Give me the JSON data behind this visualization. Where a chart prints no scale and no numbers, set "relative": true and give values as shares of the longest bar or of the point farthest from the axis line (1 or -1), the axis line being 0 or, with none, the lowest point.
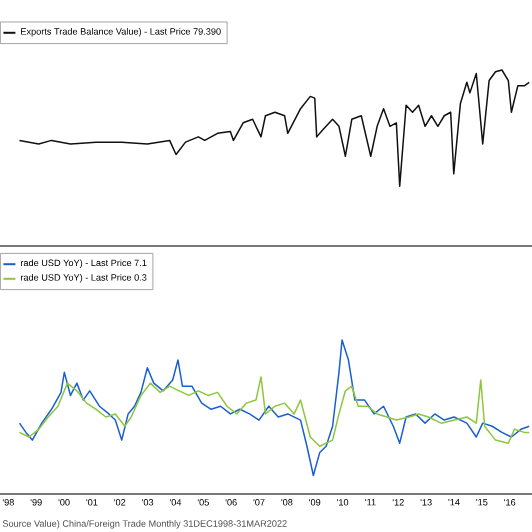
{
  "chart_data": [
    {
      "type": "line",
      "relative": true,
      "xlim": [
        1997.7,
        2016.8
      ],
      "legend": "top left",
      "series": [
        {
          "name": "Exports Trade Balance Value) - Last Price 79.390",
          "color": "#111111",
          "x": [
            1998.4,
            1999.09,
            1999.55,
            2000.23,
            2001.15,
            2002.07,
            2002.99,
            2003.79,
            2004.02,
            2004.36,
            2004.82,
            2005.05,
            2005.51,
            2005.97,
            2006.08,
            2006.43,
            2006.77,
            2007.07,
            2007.23,
            2007.57,
            2007.92,
            2008.03,
            2008.49,
            2008.84,
            2009.0,
            2009.07,
            2009.29,
            2009.64,
            2009.87,
            2010.1,
            2010.33,
            2010.67,
            2011.01,
            2011.24,
            2011.47,
            2011.7,
            2011.93,
            2012.05,
            2012.28,
            2012.51,
            2012.73,
            2012.96,
            2013.19,
            2013.42,
            2013.65,
            2013.88,
            2013.99,
            2014.23,
            2014.46,
            2014.57,
            2014.8,
            2015.03,
            2015.26,
            2015.49,
            2015.72,
            2015.95,
            2016.06,
            2016.29,
            2016.52,
            2016.7
          ],
          "values": [
            0.6,
            0.58,
            0.6,
            0.58,
            0.59,
            0.59,
            0.58,
            0.6,
            0.52,
            0.59,
            0.62,
            0.6,
            0.64,
            0.65,
            0.6,
            0.7,
            0.72,
            0.62,
            0.74,
            0.76,
            0.74,
            0.64,
            0.78,
            0.85,
            0.84,
            0.62,
            0.66,
            0.72,
            0.68,
            0.51,
            0.72,
            0.74,
            0.51,
            0.68,
            0.78,
            0.68,
            0.7,
            0.34,
            0.8,
            0.76,
            0.8,
            0.68,
            0.74,
            0.68,
            0.74,
            0.76,
            0.41,
            0.81,
            0.93,
            0.87,
            0.98,
            0.58,
            0.94,
            0.99,
            1,
            0.94,
            0.76,
            0.91,
            0.91,
            0.93
          ]
        }
      ]
    },
    {
      "type": "line",
      "relative": true,
      "xlim": [
        1997.7,
        2016.8
      ],
      "legend": "top left",
      "xticks": [
        {
          "value": 1998,
          "label": "'98"
        },
        {
          "value": 1999,
          "label": "'99"
        },
        {
          "value": 2000,
          "label": "'00"
        },
        {
          "value": 2001,
          "label": "'01"
        },
        {
          "value": 2002,
          "label": "'02"
        },
        {
          "value": 2003,
          "label": "'03"
        },
        {
          "value": 2004,
          "label": "'04"
        },
        {
          "value": 2005,
          "label": "'05"
        },
        {
          "value": 2006,
          "label": "'06"
        },
        {
          "value": 2007,
          "label": "'07"
        },
        {
          "value": 2008,
          "label": "'08"
        },
        {
          "value": 2009,
          "label": "'09"
        },
        {
          "value": 2010,
          "label": "'10"
        },
        {
          "value": 2011,
          "label": "'11"
        },
        {
          "value": 2012,
          "label": "'12"
        },
        {
          "value": 2013,
          "label": "'13"
        },
        {
          "value": 2014,
          "label": "'14"
        },
        {
          "value": 2015,
          "label": "'15"
        },
        {
          "value": 2016,
          "label": "'16"
        }
      ],
      "annotations": [
        "Source Value) China/Foreign Trade  Monthly 31DEC1998-31MAR2022"
      ],
      "series": [
        {
          "name": "rade USD YoY) - Last Price 7.1",
          "color": "#1a5fd0",
          "x": [
            1998.4,
            1998.63,
            1998.86,
            1999.2,
            1999.55,
            1999.89,
            2000.01,
            2000.23,
            2000.46,
            2000.69,
            2000.92,
            2001.27,
            2001.61,
            2001.84,
            2002.07,
            2002.3,
            2002.53,
            2002.76,
            2002.99,
            2003.22,
            2003.56,
            2003.9,
            2004.09,
            2004.25,
            2004.59,
            2004.94,
            2005.28,
            2005.62,
            2005.97,
            2006.31,
            2006.66,
            2007.0,
            2007.35,
            2007.69,
            2008.03,
            2008.49,
            2008.72,
            2008.95,
            2009.18,
            2009.41,
            2009.64,
            2009.87,
            2009.98,
            2010.21,
            2010.44,
            2010.79,
            2011.13,
            2011.47,
            2011.82,
            2012.05,
            2012.28,
            2012.62,
            2012.96,
            2013.31,
            2013.65,
            2014.0,
            2014.46,
            2014.8,
            2015.03,
            2015.37,
            2015.72,
            2016.06,
            2016.4,
            2016.7
          ],
          "values": [
            0.46,
            0.4,
            0.35,
            0.46,
            0.55,
            0.66,
            0.79,
            0.64,
            0.72,
            0.61,
            0.67,
            0.57,
            0.52,
            0.48,
            0.35,
            0.52,
            0.57,
            0.66,
            0.82,
            0.72,
            0.67,
            0.74,
            0.87,
            0.7,
            0.7,
            0.59,
            0.55,
            0.57,
            0.52,
            0.55,
            0.52,
            0.48,
            0.57,
            0.5,
            0.52,
            0.48,
            0.31,
            0.12,
            0.27,
            0.31,
            0.44,
            0.79,
            1,
            0.87,
            0.61,
            0.61,
            0.52,
            0.57,
            0.44,
            0.33,
            0.5,
            0.52,
            0.46,
            0.52,
            0.48,
            0.5,
            0.46,
            0.37,
            0.46,
            0.44,
            0.4,
            0.37,
            0.42,
            0.44
          ]
        },
        {
          "name": "rade USD YoY) - Last Price 0.3",
          "color": "#8dc63f",
          "x": [
            1998.4,
            1998.74,
            1999.09,
            1999.43,
            1999.78,
            2000.12,
            2000.46,
            2000.81,
            2001.15,
            2001.5,
            2001.84,
            2002.18,
            2002.41,
            2002.76,
            2003.1,
            2003.45,
            2003.79,
            2004.13,
            2004.48,
            2004.82,
            2005.17,
            2005.51,
            2005.85,
            2006.2,
            2006.54,
            2006.89,
            2007.07,
            2007.23,
            2007.57,
            2007.92,
            2008.26,
            2008.49,
            2008.84,
            2009.18,
            2009.64,
            2009.87,
            2010.1,
            2010.33,
            2010.56,
            2010.9,
            2011.24,
            2011.59,
            2011.93,
            2012.39,
            2012.73,
            2013.08,
            2013.54,
            2014.0,
            2014.46,
            2014.8,
            2014.96,
            2015.1,
            2015.49,
            2015.95,
            2016.17,
            2016.52,
            2016.7
          ],
          "values": [
            0.4,
            0.37,
            0.42,
            0.5,
            0.57,
            0.72,
            0.67,
            0.59,
            0.55,
            0.5,
            0.52,
            0.44,
            0.5,
            0.64,
            0.72,
            0.66,
            0.7,
            0.67,
            0.64,
            0.67,
            0.64,
            0.66,
            0.57,
            0.52,
            0.59,
            0.61,
            0.76,
            0.52,
            0.57,
            0.59,
            0.52,
            0.61,
            0.37,
            0.31,
            0.35,
            0.52,
            0.67,
            0.7,
            0.57,
            0.57,
            0.52,
            0.5,
            0.48,
            0.5,
            0.52,
            0.5,
            0.46,
            0.48,
            0.5,
            0.46,
            0.74,
            0.44,
            0.35,
            0.33,
            0.42,
            0.4,
            0.4
          ]
        }
      ]
    }
  ]
}
